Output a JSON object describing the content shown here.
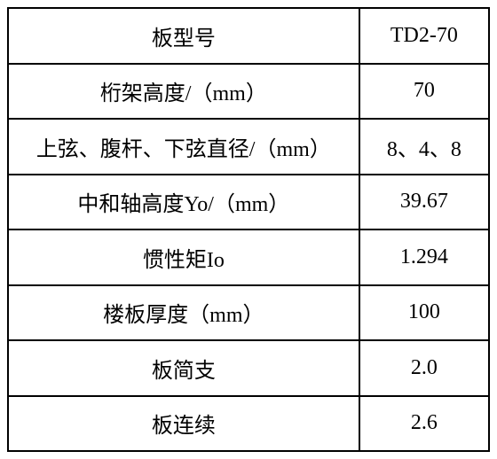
{
  "spec_table": {
    "type": "table",
    "columns": [
      {
        "width_pct": 73,
        "align": "center"
      },
      {
        "width_pct": 27,
        "align": "center"
      }
    ],
    "rows": [
      {
        "label": "板型号",
        "value": "TD2-70"
      },
      {
        "label": "桁架高度/（mm）",
        "value": "70"
      },
      {
        "label": "上弦、腹杆、下弦直径/（mm）",
        "value": "8、4、8"
      },
      {
        "label": "中和轴高度Yo/（mm）",
        "value": "39.67"
      },
      {
        "label": "惯性矩Io",
        "value": "1.294"
      },
      {
        "label": "楼板厚度（mm）",
        "value": "100"
      },
      {
        "label": "板简支",
        "value": "2.0"
      },
      {
        "label": "板连续",
        "value": "2.6"
      }
    ],
    "border_color": "#000000",
    "background_color": "#ffffff",
    "text_color": "#000000",
    "font_size": 24,
    "border_width": 2
  }
}
